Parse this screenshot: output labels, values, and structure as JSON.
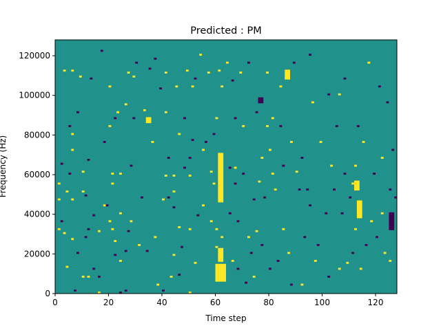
{
  "chart_data": {
    "type": "heatmap",
    "title": "Predicted : PM",
    "xlabel": "Time step",
    "ylabel": "Frequency (Hz)",
    "xlim": [
      0,
      128
    ],
    "ylim": [
      0,
      128000
    ],
    "x_ticks": [
      0,
      20,
      40,
      60,
      80,
      100,
      120
    ],
    "y_ticks": [
      0,
      20000,
      40000,
      60000,
      80000,
      100000,
      120000
    ],
    "x_tick_labels": [
      "0",
      "20",
      "40",
      "60",
      "80",
      "100",
      "120"
    ],
    "y_tick_labels": [
      "0",
      "20000",
      "40000",
      "60000",
      "80000",
      "100000",
      "120000"
    ],
    "rows": 128,
    "cols": 128,
    "grid": false,
    "colormap": "viridis",
    "background_value": 0,
    "value_colors": {
      "-1": "#440154",
      "0": "#21918c",
      "1": "#fde725"
    },
    "cells": [
      {
        "col": 1,
        "row": 55,
        "value": 1
      },
      {
        "col": 1,
        "row": 47,
        "value": 1
      },
      {
        "col": 1,
        "row": 32,
        "value": 1
      },
      {
        "col": 2,
        "row": 36,
        "value": -1
      },
      {
        "col": 2,
        "row": 65,
        "value": -1
      },
      {
        "col": 3,
        "row": 112,
        "value": 1
      },
      {
        "col": 3,
        "row": 30,
        "value": 1
      },
      {
        "col": 4,
        "row": 13,
        "value": 1
      },
      {
        "col": 4,
        "row": 51,
        "value": 1
      },
      {
        "col": 5,
        "row": 60,
        "value": -1
      },
      {
        "col": 5,
        "row": 84,
        "value": -1
      },
      {
        "col": 6,
        "row": 112,
        "value": 1
      },
      {
        "col": 6,
        "row": 27,
        "value": 1
      },
      {
        "col": 6,
        "row": 80,
        "value": 1
      },
      {
        "col": 6,
        "row": 72,
        "value": 1
      },
      {
        "col": 6,
        "row": 47,
        "value": 1
      },
      {
        "col": 7,
        "row": 1,
        "value": -1
      },
      {
        "col": 8,
        "row": 20,
        "value": -1
      },
      {
        "col": 8,
        "row": 91,
        "value": -1
      },
      {
        "col": 9,
        "row": 109,
        "value": 1
      },
      {
        "col": 10,
        "row": 8,
        "value": 1
      },
      {
        "col": 10,
        "row": 51,
        "value": 1
      },
      {
        "col": 10,
        "row": 61,
        "value": 1
      },
      {
        "col": 11,
        "row": 49,
        "value": -1
      },
      {
        "col": 11,
        "row": 28,
        "value": -1
      },
      {
        "col": 12,
        "row": 8,
        "value": 1
      },
      {
        "col": 12,
        "row": 32,
        "value": -1
      },
      {
        "col": 12,
        "row": 67,
        "value": -1
      },
      {
        "col": 13,
        "row": 108,
        "value": -1
      },
      {
        "col": 14,
        "row": 12,
        "value": -1
      },
      {
        "col": 14,
        "row": 39,
        "value": -1
      },
      {
        "col": 16,
        "row": 0,
        "value": 1
      },
      {
        "col": 16,
        "row": 31,
        "value": 1
      },
      {
        "col": 16,
        "row": 8,
        "value": -1
      },
      {
        "col": 17,
        "row": 122,
        "value": -1
      },
      {
        "col": 18,
        "row": 76,
        "value": -1
      },
      {
        "col": 18,
        "row": 44,
        "value": 1
      },
      {
        "col": 19,
        "row": 44,
        "value": -1
      },
      {
        "col": 20,
        "row": 104,
        "value": 1
      },
      {
        "col": 20,
        "row": 84,
        "value": 1
      },
      {
        "col": 20,
        "row": 36,
        "value": 1
      },
      {
        "col": 21,
        "row": 32,
        "value": 1
      },
      {
        "col": 21,
        "row": 55,
        "value": 1
      },
      {
        "col": 21,
        "row": 60,
        "value": 1
      },
      {
        "col": 22,
        "row": 26,
        "value": 1
      },
      {
        "col": 22,
        "row": 19,
        "value": -1
      },
      {
        "col": 22,
        "row": 88,
        "value": -1
      },
      {
        "col": 23,
        "row": 91,
        "value": 1
      },
      {
        "col": 24,
        "row": 0,
        "value": -1
      },
      {
        "col": 24,
        "row": 16,
        "value": 1
      },
      {
        "col": 24,
        "row": 40,
        "value": 1
      },
      {
        "col": 24,
        "row": 60,
        "value": 1
      },
      {
        "col": 26,
        "row": 1,
        "value": -1
      },
      {
        "col": 26,
        "row": 21,
        "value": -1
      },
      {
        "col": 26,
        "row": 95,
        "value": 1
      },
      {
        "col": 27,
        "row": 111,
        "value": 1
      },
      {
        "col": 27,
        "row": 31,
        "value": -1
      },
      {
        "col": 28,
        "row": 36,
        "value": 1
      },
      {
        "col": 28,
        "row": 64,
        "value": -1
      },
      {
        "col": 29,
        "row": 109,
        "value": 1
      },
      {
        "col": 29,
        "row": 88,
        "value": -1
      },
      {
        "col": 30,
        "row": 116,
        "value": -1
      },
      {
        "col": 31,
        "row": 24,
        "value": 1
      },
      {
        "col": 32,
        "row": 48,
        "value": -1
      },
      {
        "col": 33,
        "row": 92,
        "value": 1
      },
      {
        "col": 34,
        "row": 21,
        "value": -1
      },
      {
        "col": 35,
        "row": 113,
        "value": -1
      },
      {
        "col": 36,
        "row": 76,
        "value": 1
      },
      {
        "col": 37,
        "row": 118,
        "value": -1
      },
      {
        "col": 37,
        "row": 28,
        "value": 1
      },
      {
        "col": 38,
        "row": 4,
        "value": 1
      },
      {
        "col": 39,
        "row": 103,
        "value": -1
      },
      {
        "col": 40,
        "row": 1,
        "value": -1
      },
      {
        "col": 40,
        "row": 47,
        "value": 1
      },
      {
        "col": 41,
        "row": 111,
        "value": 1
      },
      {
        "col": 41,
        "row": 91,
        "value": 1
      },
      {
        "col": 41,
        "row": 59,
        "value": 1
      },
      {
        "col": 42,
        "row": 48,
        "value": -1
      },
      {
        "col": 42,
        "row": 68,
        "value": -1
      },
      {
        "col": 43,
        "row": 8,
        "value": 1
      },
      {
        "col": 44,
        "row": 59,
        "value": 1
      },
      {
        "col": 44,
        "row": 19,
        "value": 1
      },
      {
        "col": 44,
        "row": 43,
        "value": -1
      },
      {
        "col": 44,
        "row": 51,
        "value": 1
      },
      {
        "col": 45,
        "row": 104,
        "value": 1
      },
      {
        "col": 46,
        "row": 9,
        "value": -1
      },
      {
        "col": 46,
        "row": 80,
        "value": 1
      },
      {
        "col": 46,
        "row": 33,
        "value": 1
      },
      {
        "col": 47,
        "row": 23,
        "value": -1
      },
      {
        "col": 48,
        "row": 63,
        "value": -1
      },
      {
        "col": 48,
        "row": 88,
        "value": -1
      },
      {
        "col": 49,
        "row": 112,
        "value": 1
      },
      {
        "col": 50,
        "row": 0,
        "value": 1
      },
      {
        "col": 50,
        "row": 32,
        "value": 1
      },
      {
        "col": 50,
        "row": 59,
        "value": 1
      },
      {
        "col": 50,
        "row": 68,
        "value": -1
      },
      {
        "col": 51,
        "row": 104,
        "value": 1
      },
      {
        "col": 51,
        "row": 77,
        "value": -1
      },
      {
        "col": 52,
        "row": 15,
        "value": 1
      },
      {
        "col": 52,
        "row": 108,
        "value": -1
      },
      {
        "col": 53,
        "row": 39,
        "value": -1
      },
      {
        "col": 54,
        "row": 120,
        "value": 1
      },
      {
        "col": 55,
        "row": 72,
        "value": 1
      },
      {
        "col": 55,
        "row": 44,
        "value": 1
      },
      {
        "col": 56,
        "row": 76,
        "value": -1
      },
      {
        "col": 57,
        "row": 111,
        "value": 1
      },
      {
        "col": 58,
        "row": 61,
        "value": 1
      },
      {
        "col": 58,
        "row": 36,
        "value": 1
      },
      {
        "col": 59,
        "row": 80,
        "value": -1
      },
      {
        "col": 59,
        "row": 55,
        "value": 1
      },
      {
        "col": 60,
        "row": 88,
        "value": 1
      },
      {
        "col": 60,
        "row": 23,
        "value": 1
      },
      {
        "col": 60,
        "row": 32,
        "value": 1
      },
      {
        "col": 61,
        "row": 112,
        "value": 1
      },
      {
        "col": 62,
        "row": 104,
        "value": 1
      },
      {
        "col": 62,
        "row": 28,
        "value": 1
      },
      {
        "col": 64,
        "row": 116,
        "value": 1
      },
      {
        "col": 65,
        "row": 63,
        "value": -1
      },
      {
        "col": 65,
        "row": 40,
        "value": -1
      },
      {
        "col": 66,
        "row": 107,
        "value": -1
      },
      {
        "col": 66,
        "row": 16,
        "value": 1
      },
      {
        "col": 67,
        "row": 55,
        "value": -1
      },
      {
        "col": 67,
        "row": 88,
        "value": -1
      },
      {
        "col": 67,
        "row": 63,
        "value": 1
      },
      {
        "col": 68,
        "row": 36,
        "value": -1
      },
      {
        "col": 68,
        "row": 12,
        "value": -1
      },
      {
        "col": 69,
        "row": 111,
        "value": 1
      },
      {
        "col": 70,
        "row": 84,
        "value": 1
      },
      {
        "col": 70,
        "row": 60,
        "value": -1
      },
      {
        "col": 71,
        "row": 5,
        "value": -1
      },
      {
        "col": 72,
        "row": 116,
        "value": -1
      },
      {
        "col": 72,
        "row": 28,
        "value": 1
      },
      {
        "col": 73,
        "row": 20,
        "value": -1
      },
      {
        "col": 74,
        "row": 47,
        "value": -1
      },
      {
        "col": 74,
        "row": 8,
        "value": 1
      },
      {
        "col": 75,
        "row": 31,
        "value": 1
      },
      {
        "col": 75,
        "row": 91,
        "value": -1
      },
      {
        "col": 76,
        "row": 56,
        "value": 1
      },
      {
        "col": 77,
        "row": 24,
        "value": -1
      },
      {
        "col": 77,
        "row": 68,
        "value": 1
      },
      {
        "col": 78,
        "row": 48,
        "value": -1
      },
      {
        "col": 79,
        "row": 111,
        "value": 1
      },
      {
        "col": 79,
        "row": 84,
        "value": 1
      },
      {
        "col": 80,
        "row": 72,
        "value": 1
      },
      {
        "col": 80,
        "row": 12,
        "value": -1
      },
      {
        "col": 81,
        "row": 88,
        "value": 1
      },
      {
        "col": 81,
        "row": 60,
        "value": 1
      },
      {
        "col": 82,
        "row": 52,
        "value": 1
      },
      {
        "col": 83,
        "row": 16,
        "value": -1
      },
      {
        "col": 84,
        "row": 104,
        "value": 1
      },
      {
        "col": 84,
        "row": 84,
        "value": -1
      },
      {
        "col": 85,
        "row": 64,
        "value": -1
      },
      {
        "col": 85,
        "row": 32,
        "value": 1
      },
      {
        "col": 86,
        "row": 112,
        "value": -1
      },
      {
        "col": 87,
        "row": 108,
        "value": 1
      },
      {
        "col": 87,
        "row": 20,
        "value": 1
      },
      {
        "col": 88,
        "row": 76,
        "value": 1
      },
      {
        "col": 88,
        "row": 4,
        "value": -1
      },
      {
        "col": 89,
        "row": 116,
        "value": -1
      },
      {
        "col": 90,
        "row": 61,
        "value": 1
      },
      {
        "col": 91,
        "row": 52,
        "value": -1
      },
      {
        "col": 92,
        "row": 68,
        "value": -1
      },
      {
        "col": 92,
        "row": 4,
        "value": 1
      },
      {
        "col": 93,
        "row": 28,
        "value": -1
      },
      {
        "col": 94,
        "row": 52,
        "value": -1
      },
      {
        "col": 95,
        "row": 44,
        "value": -1
      },
      {
        "col": 95,
        "row": 120,
        "value": -1
      },
      {
        "col": 96,
        "row": 96,
        "value": 1
      },
      {
        "col": 97,
        "row": 16,
        "value": 1
      },
      {
        "col": 98,
        "row": 24,
        "value": -1
      },
      {
        "col": 99,
        "row": 76,
        "value": 1
      },
      {
        "col": 101,
        "row": 40,
        "value": -1
      },
      {
        "col": 102,
        "row": 100,
        "value": -1
      },
      {
        "col": 102,
        "row": 8,
        "value": -1
      },
      {
        "col": 103,
        "row": 64,
        "value": 1
      },
      {
        "col": 104,
        "row": 52,
        "value": -1
      },
      {
        "col": 105,
        "row": 84,
        "value": -1
      },
      {
        "col": 106,
        "row": 100,
        "value": 1
      },
      {
        "col": 106,
        "row": 12,
        "value": 1
      },
      {
        "col": 107,
        "row": 40,
        "value": -1
      },
      {
        "col": 108,
        "row": 108,
        "value": -1
      },
      {
        "col": 108,
        "row": 60,
        "value": -1
      },
      {
        "col": 109,
        "row": 15,
        "value": 1
      },
      {
        "col": 110,
        "row": 48,
        "value": -1
      },
      {
        "col": 111,
        "row": 20,
        "value": -1
      },
      {
        "col": 111,
        "row": 55,
        "value": 1
      },
      {
        "col": 112,
        "row": 32,
        "value": 1
      },
      {
        "col": 112,
        "row": 64,
        "value": 1
      },
      {
        "col": 113,
        "row": 84,
        "value": -1
      },
      {
        "col": 114,
        "row": 12,
        "value": 1
      },
      {
        "col": 115,
        "row": 76,
        "value": 1
      },
      {
        "col": 116,
        "row": 24,
        "value": -1
      },
      {
        "col": 117,
        "row": 116,
        "value": 1
      },
      {
        "col": 118,
        "row": 36,
        "value": 1
      },
      {
        "col": 119,
        "row": 60,
        "value": -1
      },
      {
        "col": 120,
        "row": 28,
        "value": -1
      },
      {
        "col": 121,
        "row": 104,
        "value": -1
      },
      {
        "col": 122,
        "row": 40,
        "value": 1
      },
      {
        "col": 122,
        "row": 68,
        "value": 1
      },
      {
        "col": 123,
        "row": 20,
        "value": 1
      },
      {
        "col": 124,
        "row": 96,
        "value": -1
      },
      {
        "col": 125,
        "row": 52,
        "value": -1
      },
      {
        "col": 125,
        "row": 16,
        "value": 1
      },
      {
        "col": 126,
        "row": 72,
        "value": -1
      },
      {
        "col": 127,
        "row": 48,
        "value": -1
      }
    ],
    "bands": [
      {
        "col_start": 60,
        "col_end": 63,
        "row_start": 6,
        "row_end": 14,
        "value": 1
      },
      {
        "col_start": 61,
        "col_end": 62,
        "row_start": 46,
        "row_end": 70,
        "value": 1
      },
      {
        "col_start": 61,
        "col_end": 62,
        "row_start": 16,
        "row_end": 22,
        "value": 1
      },
      {
        "col_start": 113,
        "col_end": 114,
        "row_start": 38,
        "row_end": 46,
        "value": 1
      },
      {
        "col_start": 125,
        "col_end": 126,
        "row_start": 32,
        "row_end": 40,
        "value": -1
      },
      {
        "col_start": 112,
        "col_end": 113,
        "row_start": 52,
        "row_end": 56,
        "value": 1
      },
      {
        "col_start": 86,
        "col_end": 87,
        "row_start": 108,
        "row_end": 112,
        "value": 1
      },
      {
        "col_start": 76,
        "col_end": 77,
        "row_start": 96,
        "row_end": 98,
        "value": -1
      },
      {
        "col_start": 34,
        "col_end": 35,
        "row_start": 86,
        "row_end": 88,
        "value": 1
      }
    ]
  }
}
